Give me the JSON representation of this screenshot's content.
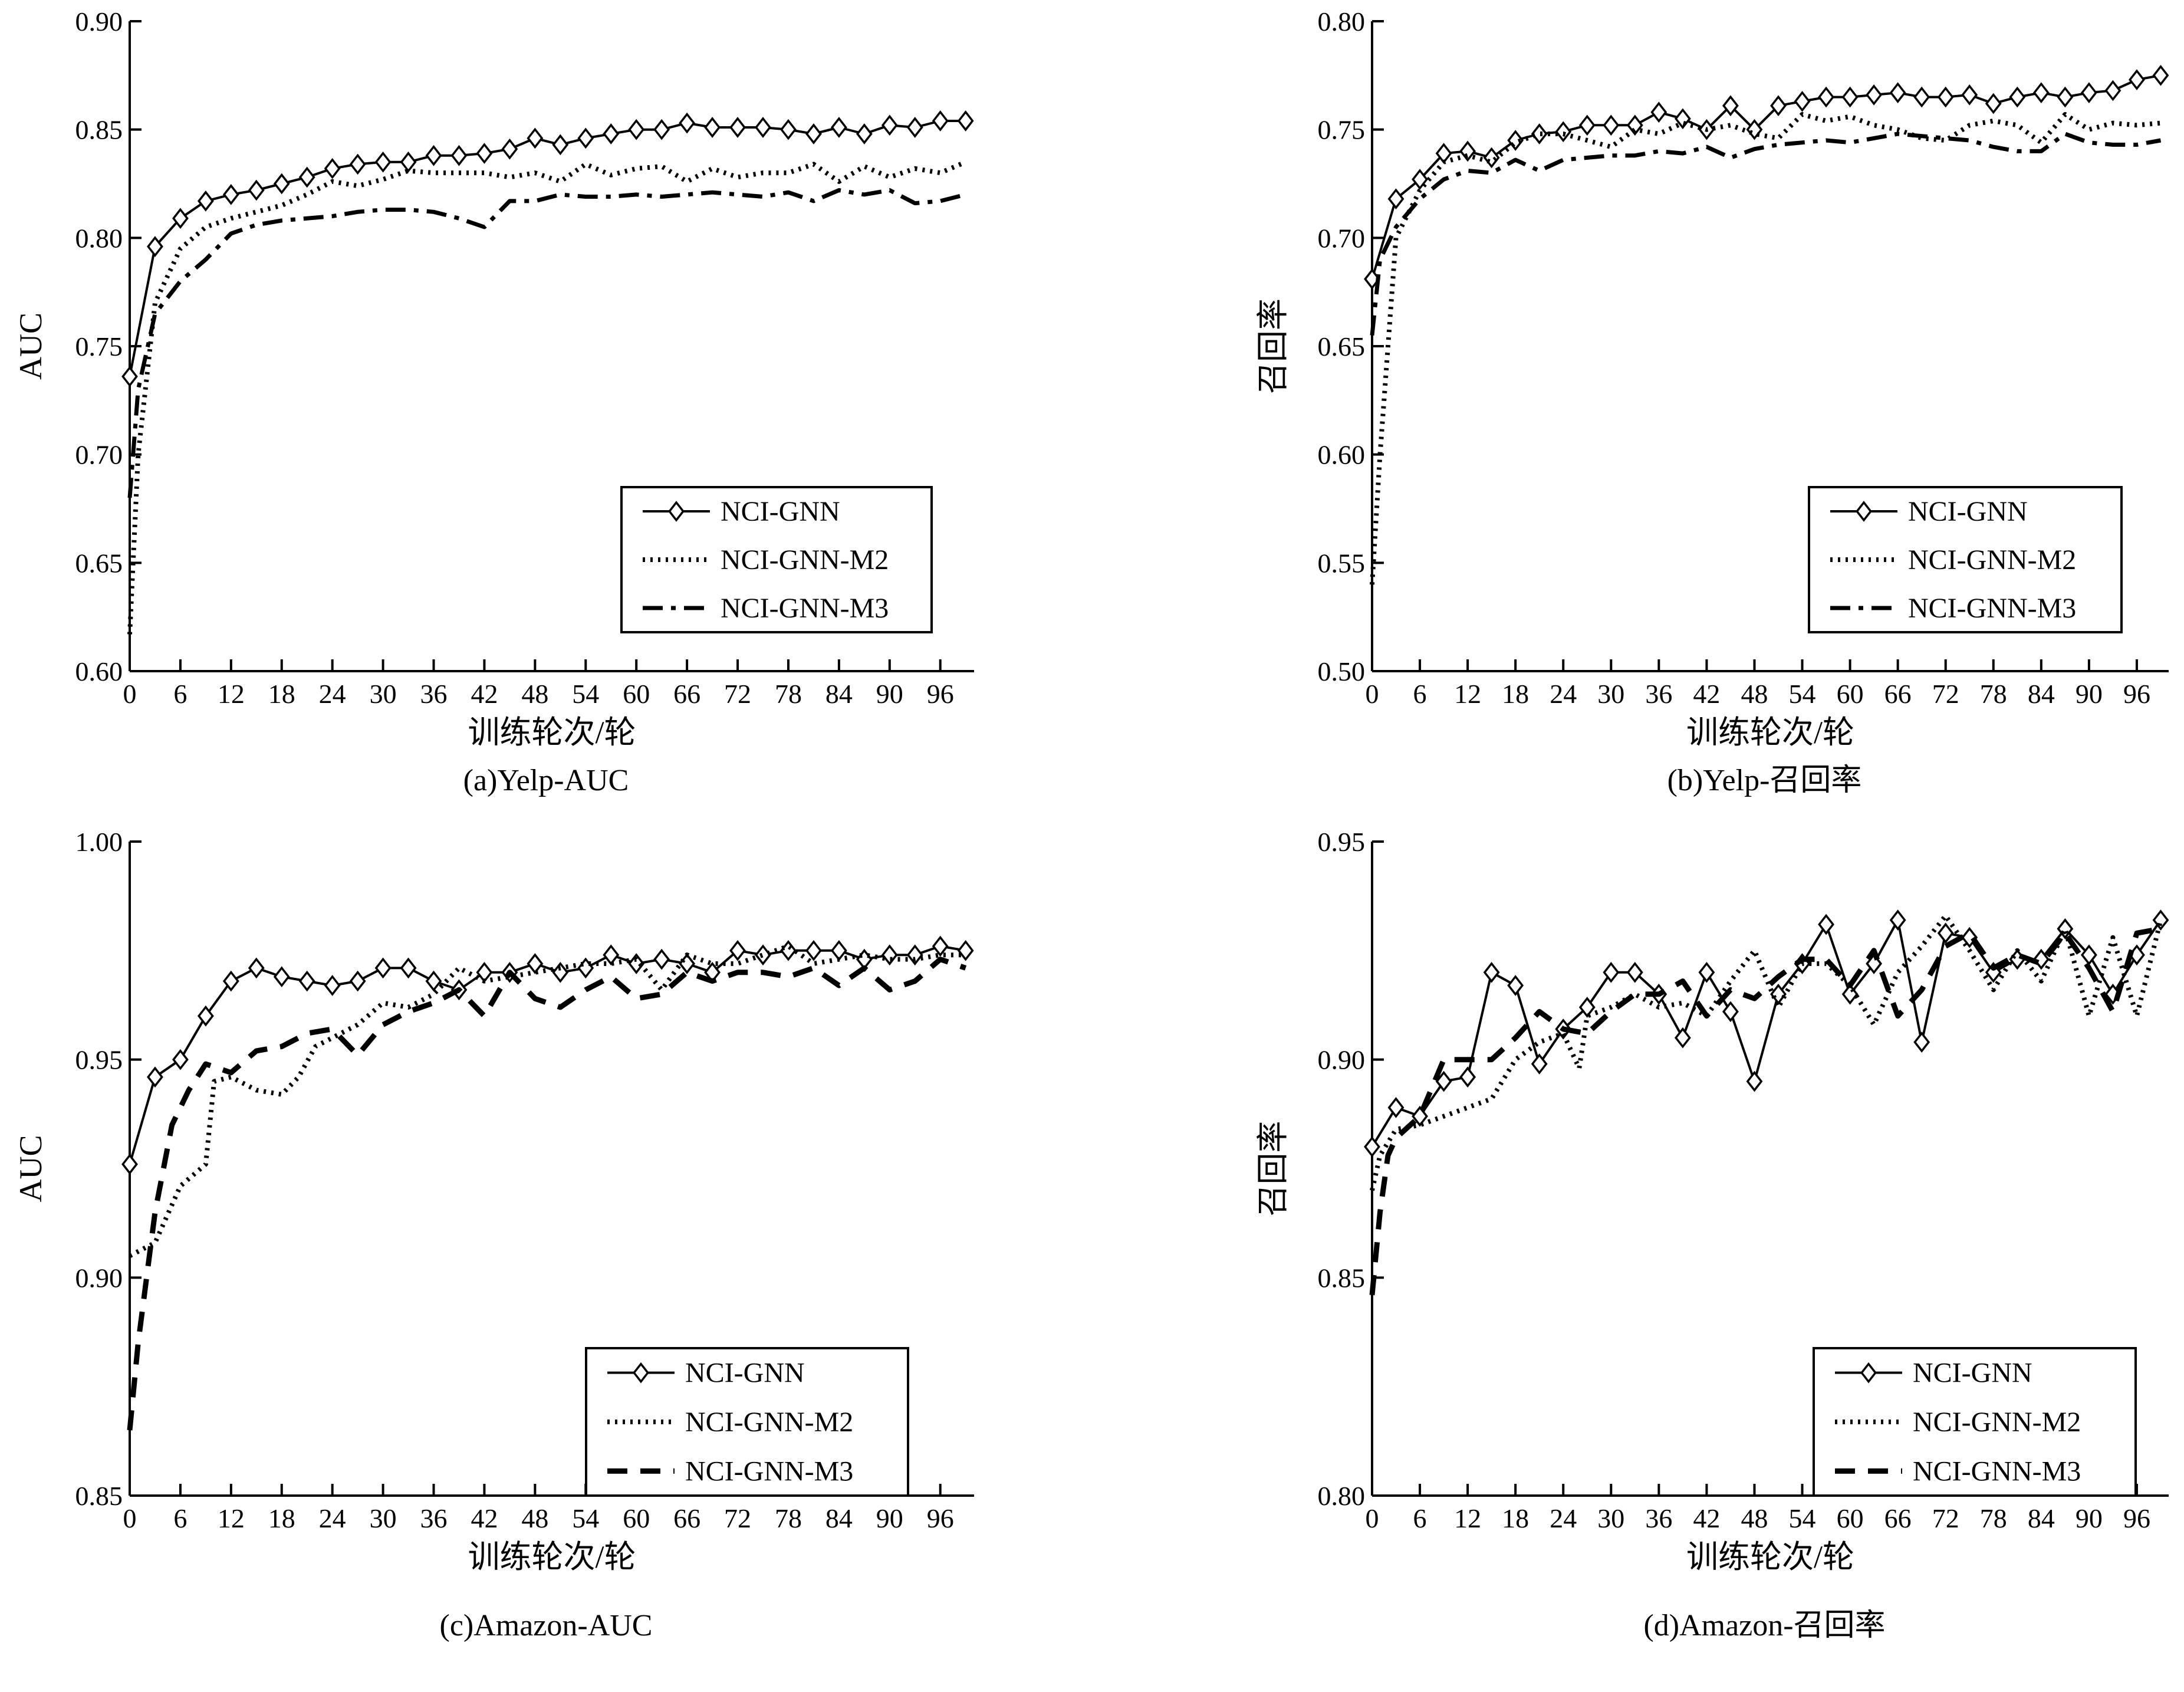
{
  "chart_data": [
    {
      "type": "line",
      "caption": "(a)Yelp-AUC",
      "xlabel": "训练轮次/轮",
      "ylabel": "AUC",
      "xlim": [
        0,
        100
      ],
      "ylim": [
        0.6,
        0.9
      ],
      "xticks": [
        "0",
        "6",
        "12",
        "18",
        "24",
        "30",
        "36",
        "42",
        "48",
        "54",
        "60",
        "66",
        "72",
        "78",
        "84",
        "90",
        "96"
      ],
      "yticks": [
        "0.60",
        "0.65",
        "0.70",
        "0.75",
        "0.80",
        "0.85",
        "0.90"
      ],
      "legend": "lower-right",
      "series": [
        {
          "name": "NCI-GNN",
          "x": [
            0,
            3,
            6,
            9,
            12,
            15,
            18,
            21,
            24,
            27,
            30,
            33,
            36,
            39,
            42,
            45,
            48,
            51,
            54,
            57,
            60,
            63,
            66,
            69,
            72,
            75,
            78,
            81,
            84,
            87,
            90,
            93,
            96,
            99
          ],
          "values": [
            0.736,
            0.796,
            0.809,
            0.817,
            0.82,
            0.822,
            0.825,
            0.828,
            0.832,
            0.834,
            0.835,
            0.835,
            0.838,
            0.838,
            0.839,
            0.841,
            0.846,
            0.843,
            0.846,
            0.848,
            0.85,
            0.85,
            0.853,
            0.851,
            0.851,
            0.851,
            0.85,
            0.848,
            0.851,
            0.848,
            0.852,
            0.851,
            0.854,
            0.854
          ]
        },
        {
          "name": "NCI-GNN-M2",
          "x": [
            0,
            1,
            3,
            6,
            9,
            12,
            15,
            18,
            21,
            24,
            27,
            30,
            33,
            36,
            39,
            42,
            45,
            48,
            51,
            54,
            57,
            60,
            63,
            66,
            69,
            72,
            75,
            78,
            81,
            84,
            87,
            90,
            93,
            96,
            99
          ],
          "values": [
            0.617,
            0.7,
            0.77,
            0.795,
            0.805,
            0.809,
            0.812,
            0.815,
            0.82,
            0.826,
            0.824,
            0.827,
            0.831,
            0.83,
            0.83,
            0.83,
            0.828,
            0.83,
            0.826,
            0.834,
            0.829,
            0.832,
            0.833,
            0.826,
            0.832,
            0.828,
            0.83,
            0.83,
            0.834,
            0.826,
            0.833,
            0.828,
            0.832,
            0.83,
            0.835
          ]
        },
        {
          "name": "NCI-GNN-M3",
          "x": [
            0,
            1,
            3,
            6,
            9,
            12,
            15,
            18,
            21,
            24,
            27,
            30,
            33,
            36,
            39,
            42,
            45,
            48,
            51,
            54,
            57,
            60,
            63,
            66,
            69,
            72,
            75,
            78,
            81,
            84,
            87,
            90,
            93,
            96,
            99
          ],
          "values": [
            0.68,
            0.73,
            0.765,
            0.78,
            0.79,
            0.802,
            0.806,
            0.808,
            0.809,
            0.81,
            0.812,
            0.813,
            0.813,
            0.812,
            0.809,
            0.805,
            0.817,
            0.817,
            0.82,
            0.819,
            0.819,
            0.82,
            0.819,
            0.82,
            0.821,
            0.82,
            0.819,
            0.821,
            0.817,
            0.822,
            0.82,
            0.822,
            0.816,
            0.817,
            0.82
          ]
        }
      ]
    },
    {
      "type": "line",
      "caption": "(b)Yelp-召回率",
      "xlabel": "训练轮次/轮",
      "ylabel": "召回率",
      "xlim": [
        0,
        100
      ],
      "ylim": [
        0.5,
        0.8
      ],
      "xticks": [
        "0",
        "6",
        "12",
        "18",
        "24",
        "30",
        "36",
        "42",
        "48",
        "54",
        "60",
        "66",
        "72",
        "78",
        "84",
        "90",
        "96"
      ],
      "yticks": [
        "0.50",
        "0.55",
        "0.60",
        "0.65",
        "0.70",
        "0.75",
        "0.80"
      ],
      "legend": "lower-right",
      "series": [
        {
          "name": "NCI-GNN",
          "x": [
            0,
            3,
            6,
            9,
            12,
            15,
            18,
            21,
            24,
            27,
            30,
            33,
            36,
            39,
            42,
            45,
            48,
            51,
            54,
            57,
            60,
            63,
            66,
            69,
            72,
            75,
            78,
            81,
            84,
            87,
            90,
            93,
            96,
            99
          ],
          "values": [
            0.681,
            0.718,
            0.727,
            0.739,
            0.74,
            0.737,
            0.745,
            0.748,
            0.749,
            0.752,
            0.752,
            0.752,
            0.758,
            0.755,
            0.75,
            0.761,
            0.75,
            0.761,
            0.763,
            0.765,
            0.765,
            0.766,
            0.767,
            0.765,
            0.765,
            0.766,
            0.762,
            0.765,
            0.767,
            0.765,
            0.767,
            0.768,
            0.773,
            0.775
          ]
        },
        {
          "name": "NCI-GNN-M2",
          "x": [
            0,
            1,
            3,
            6,
            9,
            12,
            15,
            18,
            21,
            24,
            27,
            30,
            33,
            36,
            39,
            42,
            45,
            48,
            51,
            54,
            57,
            60,
            63,
            66,
            69,
            72,
            75,
            78,
            81,
            84,
            87,
            90,
            93,
            96,
            99
          ],
          "values": [
            0.54,
            0.6,
            0.7,
            0.722,
            0.735,
            0.738,
            0.735,
            0.744,
            0.748,
            0.748,
            0.745,
            0.742,
            0.75,
            0.748,
            0.753,
            0.75,
            0.752,
            0.748,
            0.746,
            0.757,
            0.754,
            0.756,
            0.752,
            0.75,
            0.746,
            0.745,
            0.752,
            0.754,
            0.752,
            0.744,
            0.757,
            0.75,
            0.753,
            0.752,
            0.753
          ]
        },
        {
          "name": "NCI-GNN-M3",
          "x": [
            0,
            1,
            3,
            6,
            9,
            12,
            15,
            18,
            21,
            24,
            27,
            30,
            33,
            36,
            39,
            42,
            45,
            48,
            51,
            54,
            57,
            60,
            63,
            66,
            69,
            72,
            75,
            78,
            81,
            84,
            87,
            90,
            93,
            96,
            99
          ],
          "values": [
            0.655,
            0.69,
            0.705,
            0.718,
            0.727,
            0.731,
            0.73,
            0.736,
            0.731,
            0.736,
            0.737,
            0.738,
            0.738,
            0.74,
            0.739,
            0.742,
            0.737,
            0.741,
            0.743,
            0.744,
            0.745,
            0.744,
            0.746,
            0.748,
            0.747,
            0.746,
            0.745,
            0.742,
            0.74,
            0.74,
            0.748,
            0.744,
            0.743,
            0.743,
            0.745
          ]
        }
      ]
    },
    {
      "type": "line",
      "caption": "(c)Amazon-AUC",
      "xlabel": "训练轮次/轮",
      "ylabel": "AUC",
      "xlim": [
        0,
        100
      ],
      "ylim": [
        0.85,
        1.0
      ],
      "xticks": [
        "0",
        "6",
        "12",
        "18",
        "24",
        "30",
        "36",
        "42",
        "48",
        "54",
        "60",
        "66",
        "72",
        "78",
        "84",
        "90",
        "96"
      ],
      "yticks": [
        "0.85",
        "0.90",
        "0.95",
        "1.00"
      ],
      "legend": "lower-right",
      "series": [
        {
          "name": "NCI-GNN",
          "x": [
            0,
            3,
            6,
            9,
            12,
            15,
            18,
            21,
            24,
            27,
            30,
            33,
            36,
            39,
            42,
            45,
            48,
            51,
            54,
            57,
            60,
            63,
            66,
            69,
            72,
            75,
            78,
            81,
            84,
            87,
            90,
            93,
            96,
            99
          ],
          "values": [
            0.926,
            0.946,
            0.95,
            0.96,
            0.968,
            0.971,
            0.969,
            0.968,
            0.967,
            0.968,
            0.971,
            0.971,
            0.968,
            0.966,
            0.97,
            0.97,
            0.972,
            0.97,
            0.971,
            0.974,
            0.972,
            0.973,
            0.972,
            0.97,
            0.975,
            0.974,
            0.975,
            0.975,
            0.975,
            0.973,
            0.974,
            0.974,
            0.976,
            0.975
          ]
        },
        {
          "name": "NCI-GNN-M2",
          "x": [
            0,
            3,
            6,
            9,
            10,
            12,
            15,
            18,
            20,
            22,
            24,
            27,
            30,
            33,
            36,
            39,
            42,
            45,
            48,
            51,
            54,
            57,
            60,
            63,
            66,
            69,
            72,
            75,
            78,
            81,
            84,
            87,
            90,
            93,
            96,
            99
          ],
          "values": [
            0.905,
            0.908,
            0.921,
            0.926,
            0.945,
            0.946,
            0.943,
            0.942,
            0.946,
            0.953,
            0.955,
            0.958,
            0.963,
            0.962,
            0.965,
            0.971,
            0.968,
            0.969,
            0.97,
            0.971,
            0.972,
            0.972,
            0.973,
            0.966,
            0.974,
            0.972,
            0.972,
            0.974,
            0.976,
            0.972,
            0.973,
            0.974,
            0.973,
            0.973,
            0.974,
            0.974
          ]
        },
        {
          "name": "NCI-GNN-M3",
          "x": [
            0,
            1,
            2,
            3,
            5,
            7,
            9,
            12,
            15,
            18,
            21,
            24,
            27,
            30,
            33,
            36,
            39,
            42,
            45,
            48,
            51,
            54,
            57,
            60,
            63,
            66,
            69,
            72,
            75,
            78,
            81,
            84,
            87,
            90,
            93,
            96,
            99
          ],
          "values": [
            0.865,
            0.885,
            0.9,
            0.915,
            0.935,
            0.943,
            0.949,
            0.947,
            0.952,
            0.953,
            0.956,
            0.957,
            0.951,
            0.958,
            0.961,
            0.963,
            0.966,
            0.96,
            0.97,
            0.964,
            0.962,
            0.966,
            0.969,
            0.964,
            0.965,
            0.97,
            0.968,
            0.97,
            0.97,
            0.969,
            0.971,
            0.967,
            0.971,
            0.966,
            0.968,
            0.973,
            0.971
          ]
        }
      ]
    },
    {
      "type": "line",
      "caption": "(d)Amazon-召回率",
      "xlabel": "训练轮次/轮",
      "ylabel": "召回率",
      "xlim": [
        0,
        100
      ],
      "ylim": [
        0.8,
        0.95
      ],
      "xticks": [
        "0",
        "6",
        "12",
        "18",
        "24",
        "30",
        "36",
        "42",
        "48",
        "54",
        "60",
        "66",
        "72",
        "78",
        "84",
        "90",
        "96"
      ],
      "yticks": [
        "0.80",
        "0.85",
        "0.90",
        "0.95"
      ],
      "legend": "lower-right",
      "series": [
        {
          "name": "NCI-GNN",
          "x": [
            0,
            3,
            6,
            9,
            12,
            15,
            18,
            21,
            24,
            27,
            30,
            33,
            36,
            39,
            42,
            45,
            48,
            51,
            54,
            57,
            60,
            63,
            66,
            69,
            72,
            75,
            78,
            81,
            84,
            87,
            90,
            93,
            96,
            99
          ],
          "values": [
            0.88,
            0.889,
            0.887,
            0.895,
            0.896,
            0.92,
            0.917,
            0.899,
            0.907,
            0.912,
            0.92,
            0.92,
            0.915,
            0.905,
            0.92,
            0.911,
            0.895,
            0.915,
            0.922,
            0.931,
            0.915,
            0.922,
            0.932,
            0.904,
            0.929,
            0.928,
            0.92,
            0.923,
            0.923,
            0.93,
            0.924,
            0.915,
            0.924,
            0.932
          ]
        },
        {
          "name": "NCI-GNN-M2",
          "x": [
            0,
            1,
            3,
            6,
            9,
            12,
            15,
            18,
            21,
            24,
            26,
            27,
            30,
            33,
            36,
            39,
            42,
            45,
            48,
            51,
            54,
            57,
            60,
            63,
            66,
            69,
            72,
            75,
            78,
            81,
            84,
            87,
            90,
            93,
            96,
            99
          ],
          "values": [
            0.87,
            0.878,
            0.884,
            0.885,
            0.887,
            0.889,
            0.891,
            0.9,
            0.904,
            0.906,
            0.898,
            0.91,
            0.912,
            0.915,
            0.912,
            0.913,
            0.91,
            0.918,
            0.925,
            0.912,
            0.922,
            0.922,
            0.917,
            0.908,
            0.92,
            0.926,
            0.933,
            0.925,
            0.916,
            0.925,
            0.918,
            0.93,
            0.91,
            0.928,
            0.91,
            0.932
          ]
        },
        {
          "name": "NCI-GNN-M3",
          "x": [
            0,
            1,
            2,
            3,
            6,
            9,
            12,
            15,
            18,
            21,
            24,
            27,
            30,
            33,
            36,
            39,
            42,
            45,
            48,
            51,
            54,
            57,
            60,
            63,
            66,
            69,
            72,
            75,
            78,
            81,
            84,
            87,
            90,
            93,
            96,
            99
          ],
          "values": [
            0.846,
            0.865,
            0.878,
            0.882,
            0.887,
            0.9,
            0.9,
            0.9,
            0.905,
            0.911,
            0.907,
            0.906,
            0.911,
            0.915,
            0.915,
            0.918,
            0.91,
            0.916,
            0.914,
            0.919,
            0.923,
            0.923,
            0.917,
            0.925,
            0.91,
            0.916,
            0.926,
            0.929,
            0.921,
            0.924,
            0.922,
            0.929,
            0.921,
            0.911,
            0.929,
            0.93
          ]
        }
      ]
    }
  ]
}
